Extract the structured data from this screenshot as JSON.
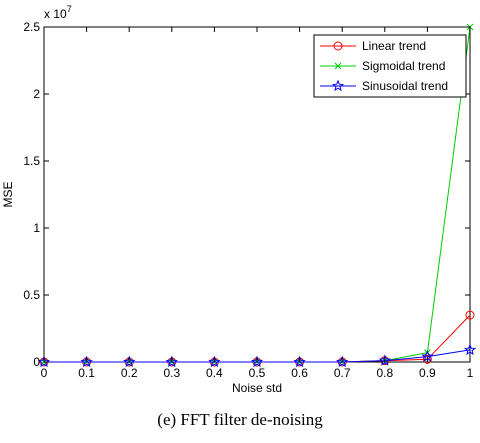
{
  "chart_data": {
    "type": "line",
    "title": "",
    "xlabel": "Noise std",
    "ylabel": "MSE",
    "y_exponent_label": "x 10",
    "y_exponent_power": "7",
    "x": [
      0,
      0.1,
      0.2,
      0.3,
      0.4,
      0.5,
      0.6,
      0.7,
      0.8,
      0.9,
      1
    ],
    "x_ticks": [
      "0",
      "0.1",
      "0.2",
      "0.3",
      "0.4",
      "0.5",
      "0.6",
      "0.7",
      "0.8",
      "0.9",
      "1"
    ],
    "y_ticks": [
      "0",
      "0.5",
      "1",
      "1.5",
      "2",
      "2.5"
    ],
    "y_tick_values": [
      0,
      0.5,
      1,
      1.5,
      2,
      2.5
    ],
    "xlim": [
      0,
      1
    ],
    "ylim": [
      0,
      2.5
    ],
    "grid": false,
    "legend_position": "top-right",
    "series": [
      {
        "name": "Linear trend",
        "color": "#ff0000",
        "marker": "circle",
        "values": [
          0,
          0,
          0,
          0,
          0,
          0,
          0,
          0,
          0.01,
          0.02,
          0.35
        ]
      },
      {
        "name": "Sigmoidal trend",
        "color": "#00cc00",
        "marker": "x",
        "values": [
          0,
          0,
          0,
          0,
          0,
          0,
          0,
          0,
          0.01,
          0.07,
          2.5
        ]
      },
      {
        "name": "Sinusoidal trend",
        "color": "#0000ff",
        "marker": "star",
        "values": [
          0,
          0,
          0,
          0,
          0,
          0,
          0,
          0,
          0.01,
          0.04,
          0.09
        ]
      }
    ]
  },
  "caption": "(e) FFT filter de-noising"
}
